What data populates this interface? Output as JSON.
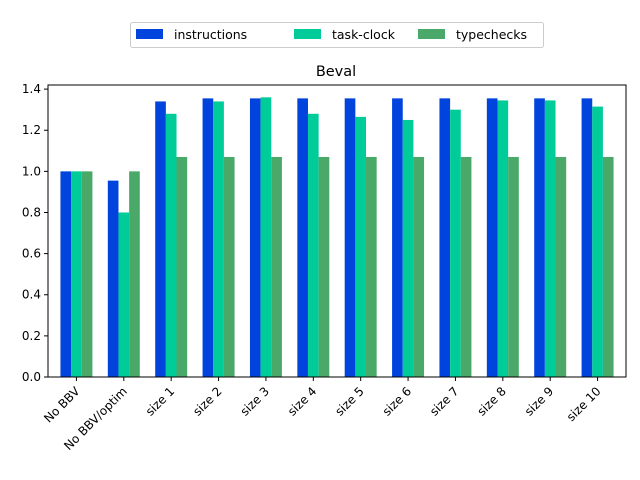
{
  "chart_data": {
    "type": "bar",
    "title": "Beval",
    "xlabel": "",
    "ylabel": "",
    "ylim": [
      0,
      1.42
    ],
    "yticks": [
      "0.0",
      "0.2",
      "0.4",
      "0.6",
      "0.8",
      "1.0",
      "1.2",
      "1.4"
    ],
    "grid": false,
    "legend_position": "top-center",
    "categories": [
      "No BBV",
      "No BBV/optim",
      "size 1",
      "size 2",
      "size 3",
      "size 4",
      "size 5",
      "size 6",
      "size 7",
      "size 8",
      "size 9",
      "size 10"
    ],
    "series": [
      {
        "name": "instructions",
        "color": "#0044dd",
        "values": [
          1.0,
          0.955,
          1.34,
          1.355,
          1.355,
          1.355,
          1.355,
          1.355,
          1.355,
          1.355,
          1.355,
          1.355
        ]
      },
      {
        "name": "task-clock",
        "color": "#00cc99",
        "values": [
          1.0,
          0.8,
          1.28,
          1.34,
          1.36,
          1.28,
          1.265,
          1.25,
          1.3,
          1.345,
          1.345,
          1.315
        ]
      },
      {
        "name": "typechecks",
        "color": "#4aa868",
        "values": [
          1.0,
          1.0,
          1.07,
          1.07,
          1.07,
          1.07,
          1.07,
          1.07,
          1.07,
          1.07,
          1.07,
          1.07
        ]
      }
    ]
  }
}
